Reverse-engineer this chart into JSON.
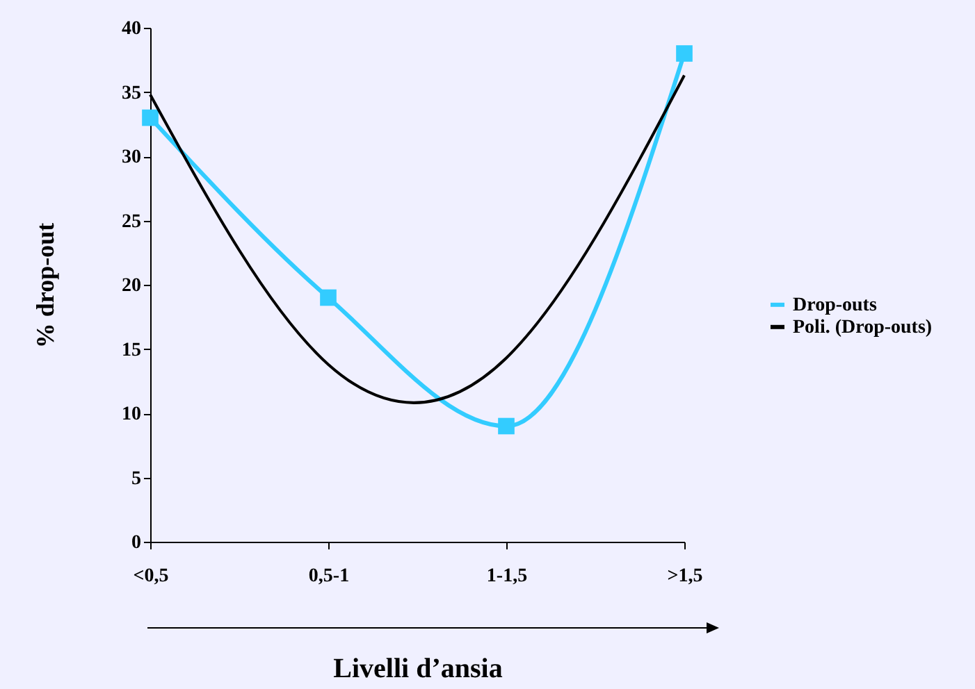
{
  "chart_data": {
    "type": "line",
    "xlabel": "Livelli d’ansia",
    "ylabel": "% drop-out",
    "categories": [
      "<0,5",
      "0,5-1",
      "1-1,5",
      ">1,5"
    ],
    "ylim": [
      0,
      40
    ],
    "yticks": [
      0,
      5,
      10,
      15,
      20,
      25,
      30,
      35,
      40
    ],
    "grid": false,
    "legend": "right",
    "marker": "square",
    "series": [
      {
        "name": "Drop-outs",
        "color": "#33ccff",
        "values": [
          33,
          19,
          9,
          38
        ]
      },
      {
        "name": "Poli. (Drop-outs)",
        "color": "#000000",
        "type": "line",
        "marker": "none",
        "values": [
          34.8,
          13.8,
          14.3,
          36.3
        ]
      }
    ]
  }
}
